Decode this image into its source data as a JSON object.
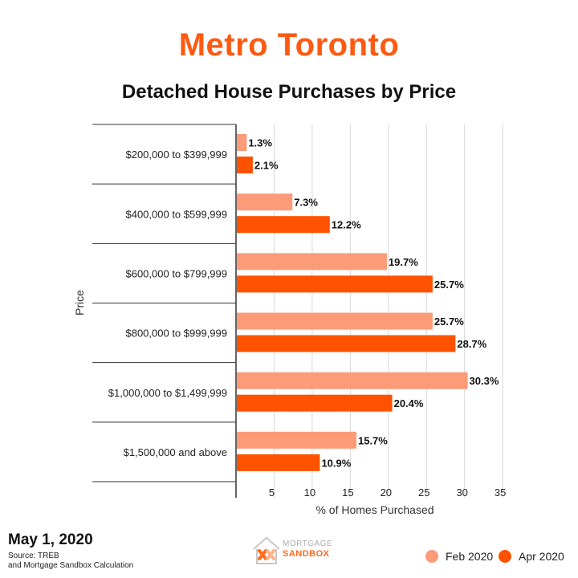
{
  "header": {
    "title": "Metro Toronto",
    "subtitle": "Detached House Purchases by Price"
  },
  "chart_data": {
    "type": "bar",
    "orientation": "horizontal",
    "title": "Detached House Purchases by Price",
    "xlabel": "% of Homes Purchased",
    "ylabel": "Price",
    "xlim": [
      0,
      35
    ],
    "xticks": [
      5,
      10,
      15,
      20,
      25,
      30,
      35
    ],
    "grid": true,
    "legend_position": "bottom-right",
    "categories": [
      "$200,000 to $399,999",
      "$400,000 to $599,999",
      "$600,000 to $799,999",
      "$800,000 to $999,999",
      "$1,000,000 to $1,499,999",
      "$1,500,000 and above"
    ],
    "series": [
      {
        "name": "Feb 2020",
        "color": "#fc9b78",
        "values": [
          1.3,
          7.3,
          19.7,
          25.7,
          30.3,
          15.7
        ],
        "labels": [
          "1.3%",
          "7.3%",
          "19.7%",
          "25.7%",
          "30.3%",
          "15.7%"
        ]
      },
      {
        "name": "Apr 2020",
        "color": "#ff5200",
        "values": [
          2.1,
          12.2,
          25.7,
          28.7,
          20.4,
          10.9
        ],
        "labels": [
          "2.1%",
          "12.2%",
          "25.7%",
          "28.7%",
          "20.4%",
          "10.9%"
        ]
      }
    ]
  },
  "footer": {
    "date": "May 1, 2020",
    "source_line1": "Source: TREB",
    "source_line2": "and Mortgage Sandbox Calculation"
  },
  "logo": {
    "line1": "MORTGAGE",
    "line2": "SANDBOX"
  },
  "legend": {
    "items": [
      {
        "label": "Feb 2020",
        "color": "#fc9b78"
      },
      {
        "label": "Apr 2020",
        "color": "#ff5200"
      }
    ]
  }
}
